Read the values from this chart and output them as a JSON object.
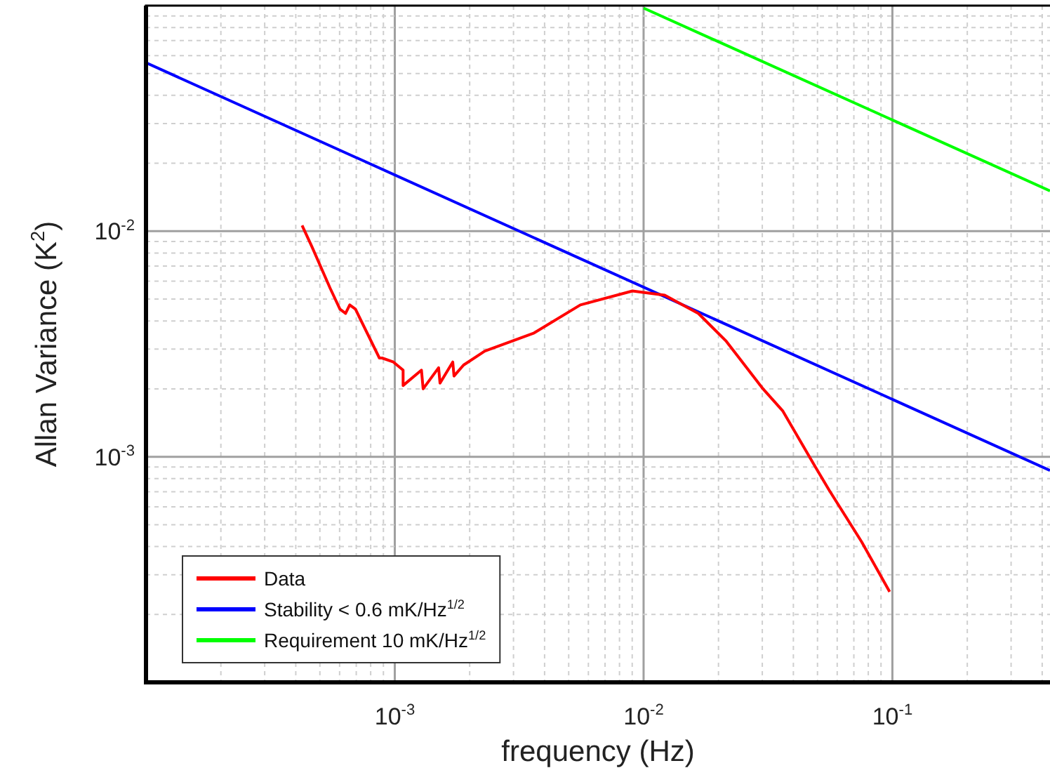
{
  "chart_data": {
    "type": "line",
    "xlabel": "frequency (Hz)",
    "ylabel": "Allan Variance (K$^{2}$)",
    "log": "xy",
    "grid": true,
    "legend": "bottom left",
    "marker": "none",
    "xlim": [
      0.0001,
      0.43
    ],
    "ylim": [
      0.0001,
      0.1
    ],
    "xticks": [
      {
        "value": 0.0002,
        "label": null
      },
      {
        "value": 0.0003,
        "label": null
      },
      {
        "value": 0.0004,
        "label": null
      },
      {
        "value": 0.0005,
        "label": null
      },
      {
        "value": 0.0006,
        "label": null
      },
      {
        "value": 0.0007,
        "label": null
      },
      {
        "value": 0.0008,
        "label": null
      },
      {
        "value": 0.0009,
        "label": null
      },
      {
        "value": 0.001,
        "label": "10$^{-3}$"
      },
      {
        "value": 0.002,
        "label": null
      },
      {
        "value": 0.003,
        "label": null
      },
      {
        "value": 0.004,
        "label": null
      },
      {
        "value": 0.005,
        "label": null
      },
      {
        "value": 0.006,
        "label": null
      },
      {
        "value": 0.007,
        "label": null
      },
      {
        "value": 0.008,
        "label": null
      },
      {
        "value": 0.009,
        "label": null
      },
      {
        "value": 0.01,
        "label": "10$^{-2}$"
      },
      {
        "value": 0.02,
        "label": null
      },
      {
        "value": 0.03,
        "label": null
      },
      {
        "value": 0.04,
        "label": null
      },
      {
        "value": 0.05,
        "label": null
      },
      {
        "value": 0.06,
        "label": null
      },
      {
        "value": 0.07,
        "label": null
      },
      {
        "value": 0.08,
        "label": null
      },
      {
        "value": 0.09,
        "label": null
      },
      {
        "value": 0.1,
        "label": "10$^{-1}$"
      },
      {
        "value": 0.2,
        "label": null
      },
      {
        "value": 0.3,
        "label": null
      },
      {
        "value": 0.4,
        "label": null
      }
    ],
    "yticks": [
      {
        "value": 0.0002,
        "label": null
      },
      {
        "value": 0.0003,
        "label": null
      },
      {
        "value": 0.0004,
        "label": null
      },
      {
        "value": 0.0005,
        "label": null
      },
      {
        "value": 0.0006,
        "label": null
      },
      {
        "value": 0.0007,
        "label": null
      },
      {
        "value": 0.0008,
        "label": null
      },
      {
        "value": 0.0009,
        "label": null
      },
      {
        "value": 0.001,
        "label": "10$^{-3}$"
      },
      {
        "value": 0.002,
        "label": null
      },
      {
        "value": 0.003,
        "label": null
      },
      {
        "value": 0.004,
        "label": null
      },
      {
        "value": 0.005,
        "label": null
      },
      {
        "value": 0.006,
        "label": null
      },
      {
        "value": 0.007,
        "label": null
      },
      {
        "value": 0.008,
        "label": null
      },
      {
        "value": 0.009,
        "label": null
      },
      {
        "value": 0.01,
        "label": "10$^{-2}$"
      },
      {
        "value": 0.02,
        "label": null
      },
      {
        "value": 0.03,
        "label": null
      },
      {
        "value": 0.04,
        "label": null
      },
      {
        "value": 0.05,
        "label": null
      },
      {
        "value": 0.06,
        "label": null
      },
      {
        "value": 0.07,
        "label": null
      },
      {
        "value": 0.08,
        "label": null
      },
      {
        "value": 0.09,
        "label": null
      }
    ],
    "series": [
      {
        "name": "Data",
        "color": "#ff0000",
        "x": [
          0.000424,
          0.000464,
          0.00055,
          0.000602,
          0.000634,
          0.000659,
          0.000695,
          0.000867,
          0.000889,
          0.000987,
          0.00108,
          0.00108,
          0.00128,
          0.0013,
          0.0015,
          0.00152,
          0.00171,
          0.00173,
          0.00189,
          0.0023,
          0.00363,
          0.00557,
          0.00902,
          0.01216,
          0.0166,
          0.0215,
          0.0302,
          0.0362,
          0.0489,
          0.0557,
          0.0752,
          0.0975
        ],
        "values": [
          0.0106,
          0.00855,
          0.00558,
          0.00451,
          0.00432,
          0.00471,
          0.00451,
          0.00274,
          0.00274,
          0.00263,
          0.00242,
          0.00207,
          0.00242,
          0.002,
          0.00248,
          0.00212,
          0.00263,
          0.00228,
          0.00255,
          0.00294,
          0.00354,
          0.00471,
          0.00543,
          0.0052,
          0.00432,
          0.00325,
          0.002,
          0.0016,
          0.000906,
          0.000711,
          0.00042,
          0.000252
        ]
      },
      {
        "name": "Stability < 0.6 mK/Hz$^{1/2}$",
        "color": "#0000ff",
        "x": [
          0.0001,
          0.43
        ],
        "values": [
          0.0558,
          0.00087
        ]
      },
      {
        "name": "Requirement 10 mK/Hz$^{1/2}$",
        "color": "#00ff00",
        "x": [
          0.01,
          0.43
        ],
        "values": [
          0.0975,
          0.0151
        ]
      }
    ]
  }
}
